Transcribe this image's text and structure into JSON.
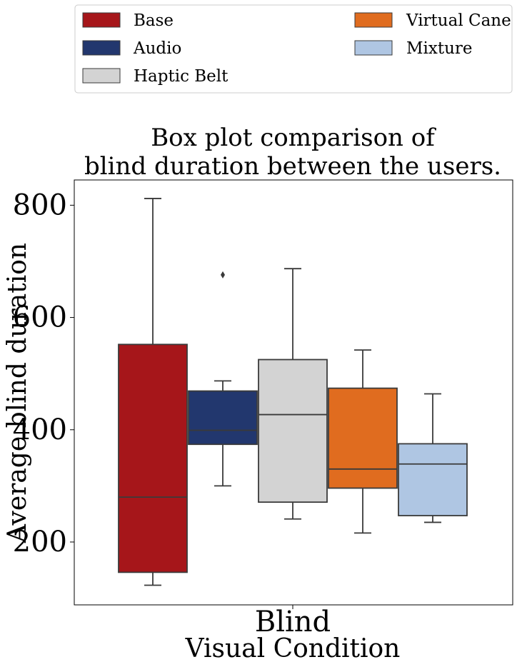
{
  "chart_data": {
    "type": "box",
    "title_lines": [
      "Box plot comparison of",
      "blind duration between the users."
    ],
    "xlabel": "Visual Condition",
    "ylabel": "Average blind duration",
    "category": "Blind",
    "ylim": [
      88,
      845
    ],
    "yticks": [
      200,
      400,
      600,
      800
    ],
    "legend": {
      "placement": "top, outside plot, 2 columns"
    },
    "series": [
      {
        "name": "Base",
        "color": "#a6161a",
        "whisker_low": 123,
        "q1": 146,
        "median": 280,
        "q3": 552,
        "whisker_high": 812,
        "outliers": []
      },
      {
        "name": "Audio",
        "color": "#22376e",
        "whisker_low": 300,
        "q1": 374,
        "median": 399,
        "q3": 469,
        "whisker_high": 487,
        "outliers": [
          676
        ]
      },
      {
        "name": "Haptic Belt",
        "color": "#d3d3d3",
        "whisker_low": 241,
        "q1": 271,
        "median": 427,
        "q3": 525,
        "whisker_high": 687,
        "outliers": []
      },
      {
        "name": "Virtual Cane",
        "color": "#e06c1f",
        "whisker_low": 216,
        "q1": 296,
        "median": 330,
        "q3": 474,
        "whisker_high": 542,
        "outliers": []
      },
      {
        "name": "Mixture",
        "color": "#afc6e3",
        "whisker_low": 235,
        "q1": 247,
        "median": 339,
        "q3": 375,
        "whisker_high": 464,
        "outliers": []
      }
    ]
  }
}
